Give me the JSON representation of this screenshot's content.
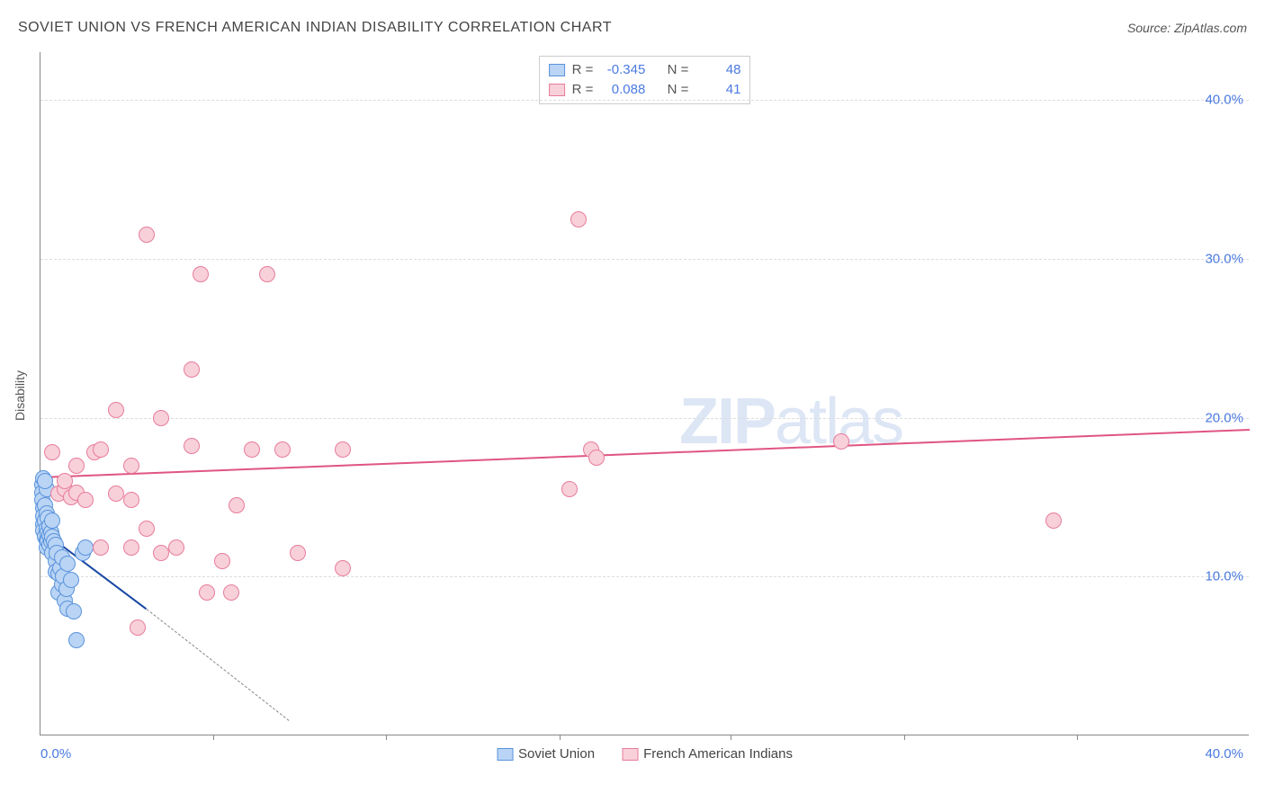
{
  "title": "SOVIET UNION VS FRENCH AMERICAN INDIAN DISABILITY CORRELATION CHART",
  "source": "Source: ZipAtlas.com",
  "ylabel": "Disability",
  "watermark": {
    "part1": "ZIP",
    "part2": "atlas"
  },
  "chart": {
    "type": "scatter",
    "xlim": [
      0,
      40
    ],
    "ylim": [
      0,
      43
    ],
    "xtick_labels": {
      "min": "0.0%",
      "max": "40.0%"
    },
    "xtick_positions_pct": [
      14.3,
      28.6,
      42.9,
      57.1,
      71.4,
      85.7
    ],
    "ytick_labels": [
      {
        "value": 10,
        "label": "10.0%"
      },
      {
        "value": 20,
        "label": "20.0%"
      },
      {
        "value": 30,
        "label": "30.0%"
      },
      {
        "value": 40,
        "label": "40.0%"
      }
    ],
    "point_radius": 9,
    "series": [
      {
        "key": "soviet",
        "name": "Soviet Union",
        "fill": "#b9d4f4",
        "stroke": "#5a93dc",
        "r_value": "-0.345",
        "n_value": "48",
        "trend": {
          "x1": 0,
          "y1": 13.0,
          "x2": 3.5,
          "y2": 8.0,
          "color": "#1746a2",
          "style": "solid"
        },
        "trend_ext": {
          "x1": 3.5,
          "y1": 8.0,
          "x2": 8.2,
          "y2": 1.0,
          "color": "#888",
          "style": "dashed"
        },
        "points": [
          [
            0.05,
            15.8
          ],
          [
            0.05,
            15.3
          ],
          [
            0.05,
            14.8
          ],
          [
            0.1,
            16.2
          ],
          [
            0.1,
            14.3
          ],
          [
            0.1,
            13.8
          ],
          [
            0.1,
            13.3
          ],
          [
            0.1,
            12.9
          ],
          [
            0.15,
            14.5
          ],
          [
            0.15,
            13.5
          ],
          [
            0.15,
            12.5
          ],
          [
            0.2,
            15.5
          ],
          [
            0.2,
            14.0
          ],
          [
            0.2,
            13.0
          ],
          [
            0.2,
            12.3
          ],
          [
            0.2,
            11.8
          ],
          [
            0.25,
            13.7
          ],
          [
            0.25,
            12.8
          ],
          [
            0.25,
            12.2
          ],
          [
            0.3,
            13.2
          ],
          [
            0.3,
            12.6
          ],
          [
            0.3,
            12.0
          ],
          [
            0.35,
            12.8
          ],
          [
            0.35,
            12.2
          ],
          [
            0.4,
            13.5
          ],
          [
            0.4,
            12.5
          ],
          [
            0.4,
            11.5
          ],
          [
            0.45,
            12.2
          ],
          [
            0.5,
            12.0
          ],
          [
            0.5,
            11.0
          ],
          [
            0.5,
            10.3
          ],
          [
            0.55,
            11.5
          ],
          [
            0.6,
            9.0
          ],
          [
            0.6,
            10.2
          ],
          [
            0.65,
            10.5
          ],
          [
            0.7,
            11.2
          ],
          [
            0.7,
            9.5
          ],
          [
            0.75,
            10.0
          ],
          [
            0.8,
            8.5
          ],
          [
            0.85,
            9.2
          ],
          [
            0.9,
            8.0
          ],
          [
            0.9,
            10.8
          ],
          [
            1.0,
            9.8
          ],
          [
            1.1,
            7.8
          ],
          [
            1.2,
            6.0
          ],
          [
            1.4,
            11.5
          ],
          [
            1.5,
            11.8
          ],
          [
            0.15,
            16.0
          ]
        ]
      },
      {
        "key": "french",
        "name": "French American Indians",
        "fill": "#f8d0da",
        "stroke": "#e77c9b",
        "r_value": "0.088",
        "n_value": "41",
        "trend": {
          "x1": 0,
          "y1": 16.3,
          "x2": 40,
          "y2": 19.3,
          "color": "#e05581",
          "style": "solid"
        },
        "points": [
          [
            0.4,
            17.8
          ],
          [
            0.6,
            15.2
          ],
          [
            0.8,
            15.5
          ],
          [
            0.8,
            16.0
          ],
          [
            1.0,
            15.0
          ],
          [
            1.2,
            17.0
          ],
          [
            1.2,
            15.3
          ],
          [
            1.5,
            14.8
          ],
          [
            1.8,
            17.8
          ],
          [
            2.0,
            11.8
          ],
          [
            2.0,
            18.0
          ],
          [
            2.5,
            20.5
          ],
          [
            2.5,
            15.2
          ],
          [
            3.0,
            11.8
          ],
          [
            3.0,
            14.8
          ],
          [
            3.0,
            17.0
          ],
          [
            3.2,
            6.8
          ],
          [
            3.5,
            13.0
          ],
          [
            3.5,
            31.5
          ],
          [
            4.0,
            20.0
          ],
          [
            4.0,
            11.5
          ],
          [
            4.5,
            11.8
          ],
          [
            5.0,
            18.2
          ],
          [
            5.0,
            23.0
          ],
          [
            5.3,
            29.0
          ],
          [
            5.5,
            9.0
          ],
          [
            6.0,
            11.0
          ],
          [
            6.3,
            9.0
          ],
          [
            6.5,
            14.5
          ],
          [
            7.0,
            18.0
          ],
          [
            7.5,
            29.0
          ],
          [
            8.0,
            18.0
          ],
          [
            8.5,
            11.5
          ],
          [
            10.0,
            10.5
          ],
          [
            10.0,
            18.0
          ],
          [
            17.5,
            15.5
          ],
          [
            17.8,
            32.5
          ],
          [
            18.2,
            18.0
          ],
          [
            18.4,
            17.5
          ],
          [
            26.5,
            18.5
          ],
          [
            33.5,
            13.5
          ]
        ]
      }
    ]
  },
  "legend_top": {
    "r_label": "R =",
    "n_label": "N ="
  }
}
